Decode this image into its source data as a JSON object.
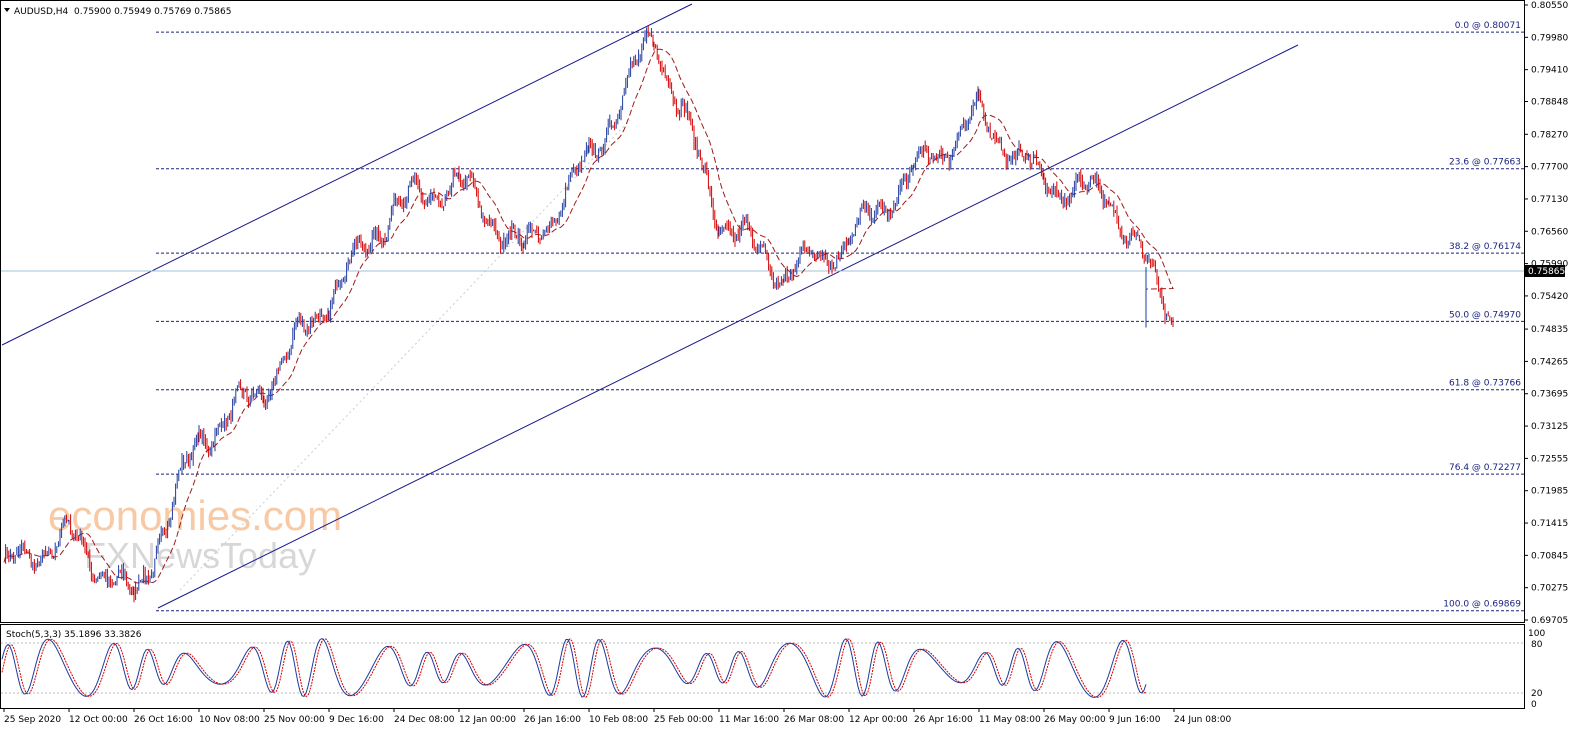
{
  "header": {
    "symbol_label": "AUDUSD,H4",
    "ohlc": "0.75900 0.75949 0.75769 0.75865"
  },
  "price_axis": {
    "ticks": [
      "0.80550",
      "0.79980",
      "0.79410",
      "0.78848",
      "0.78270",
      "0.77700",
      "0.77130",
      "0.76560",
      "0.75990",
      "0.75420",
      "0.74835",
      "0.74265",
      "0.73695",
      "0.73125",
      "0.72555",
      "0.71985",
      "0.71415",
      "0.70845",
      "0.70275",
      "0.69705"
    ],
    "current_price": "0.75865"
  },
  "fibonacci": [
    {
      "label": "0.0 @ 0.80071",
      "price": 0.80071
    },
    {
      "label": "23.6 @ 0.77663",
      "price": 0.77663
    },
    {
      "label": "38.2 @ 0.76174",
      "price": 0.76174
    },
    {
      "label": "50.0 @ 0.74970",
      "price": 0.7497
    },
    {
      "label": "61.8 @ 0.73766",
      "price": 0.73766
    },
    {
      "label": "76.4 @ 0.72277",
      "price": 0.72277
    },
    {
      "label": "100.0 @ 0.69869",
      "price": 0.69869
    }
  ],
  "stochastic": {
    "label": "Stoch(5,3,3) 35.1896 33.3826",
    "ticks": [
      "100",
      "80",
      "20",
      "0"
    ]
  },
  "time_axis": [
    "25 Sep 2020",
    "12 Oct 00:00",
    "26 Oct 16:00",
    "10 Nov 08:00",
    "25 Nov 00:00",
    "9 Dec 16:00",
    "24 Dec 08:00",
    "12 Jan 00:00",
    "26 Jan 16:00",
    "10 Feb 08:00",
    "25 Feb 00:00",
    "11 Mar 16:00",
    "26 Mar 08:00",
    "12 Apr 00:00",
    "26 Apr 16:00",
    "11 May 08:00",
    "26 May 00:00",
    "9 Jun 16:00",
    "24 Jun 08:00"
  ],
  "watermark": {
    "line1": "economies.com",
    "line2": "FXNewsToday"
  },
  "colors": {
    "bull": "#1f3a9e",
    "bear": "#d40000",
    "fib": "#1a237e",
    "channel": "#1a1a8c",
    "ma": "#9e1a1a",
    "current_line": "#9cc3d8"
  },
  "chart_data": {
    "type": "candlestick",
    "symbol": "AUDUSD",
    "timeframe": "H4",
    "ylim": [
      0.69705,
      0.8055
    ],
    "price_path": [
      [
        "25 Sep 2020",
        0.706
      ],
      [
        "12 Oct 00:00",
        0.712
      ],
      [
        "26 Oct 16:00",
        0.7005
      ],
      [
        "10 Nov 08:00",
        0.729
      ],
      [
        "25 Nov 00:00",
        0.738
      ],
      [
        "9 Dec 16:00",
        0.754
      ],
      [
        "24 Dec 08:00",
        0.77
      ],
      [
        "12 Jan 00:00",
        0.774
      ],
      [
        "26 Jan 16:00",
        0.762
      ],
      [
        "10 Feb 08:00",
        0.778
      ],
      [
        "25 Feb 00:00",
        0.8005
      ],
      [
        "11 Mar 16:00",
        0.768
      ],
      [
        "26 Mar 08:00",
        0.758
      ],
      [
        "12 Apr 00:00",
        0.764
      ],
      [
        "26 Apr 16:00",
        0.776
      ],
      [
        "11 May 08:00",
        0.786
      ],
      [
        "26 May 00:00",
        0.774
      ],
      [
        "9 Jun 16:00",
        0.772
      ],
      [
        "24 Jun 08:00",
        0.75
      ],
      [
        "last",
        0.75865
      ]
    ]
  }
}
